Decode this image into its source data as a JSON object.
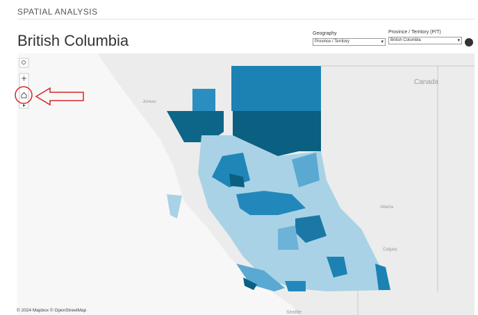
{
  "header": {
    "title": "SPATIAL ANALYSIS"
  },
  "page": {
    "title": "British Columbia"
  },
  "filters": [
    {
      "label": "Geography",
      "value": "Province / Territory"
    },
    {
      "label": "Province / Territory (P/T)",
      "value": "British Columbia"
    }
  ],
  "map": {
    "labels": {
      "country": "Canada",
      "juneau": "Juneau",
      "alberta": "Alberta",
      "calgary": "Calgary",
      "seattle": "Seattle"
    },
    "attribution": "© 2024 Mapbox © OpenStreetMap"
  }
}
